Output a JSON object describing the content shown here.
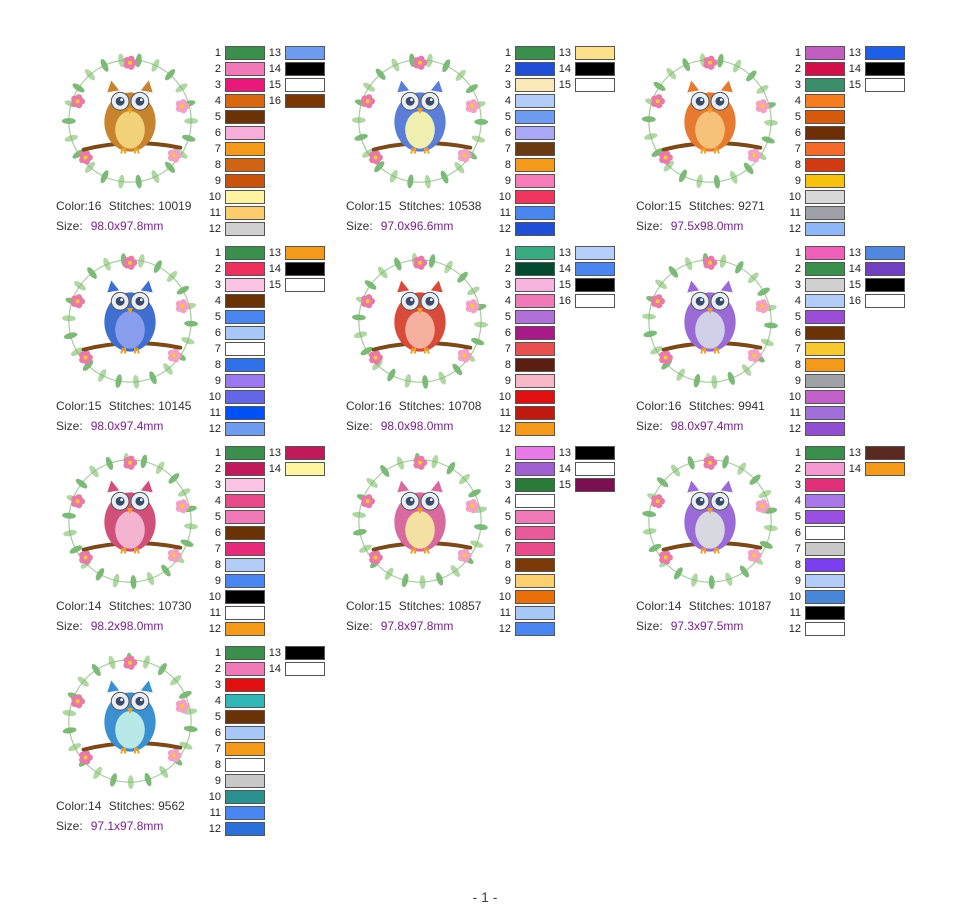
{
  "labels": {
    "color": "Color:",
    "stitches": "Stitches:",
    "size": "Size:"
  },
  "designs": [
    {
      "color_count": "16",
      "stitches": "10019",
      "size": "98.0x97.8mm",
      "owl_color": "#c8832e",
      "owl_belly": "#f1d27a",
      "threads": [
        "#3a8f4d",
        "#f07ab8",
        "#e8197a",
        "#d8680f",
        "#6b3205",
        "#f7aed8",
        "#f49a1a",
        "#ce6414",
        "#c8540c",
        "#fff2a0",
        "#fccd6e",
        "#d0d0d0",
        "#6e9cf0",
        "#000000",
        "#ffffff",
        "#7a3500"
      ]
    },
    {
      "color_count": "15",
      "stitches": "10538",
      "size": "97.0x96.6mm",
      "owl_color": "#5b7fd8",
      "owl_belly": "#f0efb2",
      "threads": [
        "#3a8f4d",
        "#1f4fd4",
        "#fbe8b8",
        "#b4cdf8",
        "#6e9cf0",
        "#a8a8f4",
        "#6a3a10",
        "#f49a1a",
        "#f77cba",
        "#f0355f",
        "#4a86f0",
        "#1f4fd4",
        "#fde08a",
        "#000000",
        "#ffffff"
      ]
    },
    {
      "color_count": "15",
      "stitches": "9271",
      "size": "97.5x98.0mm",
      "owl_color": "#e67a30",
      "owl_belly": "#f6c27a",
      "threads": [
        "#c05fc0",
        "#d10f4a",
        "#3a8f6a",
        "#f57d20",
        "#d85a0c",
        "#6e2e05",
        "#f46a2a",
        "#d23a12",
        "#f7c110",
        "#d8d8d8",
        "#a0a0a8",
        "#8fb7f8",
        "#1f5fe8",
        "#000000",
        "#ffffff"
      ]
    },
    {
      "color_count": "15",
      "stitches": "10145",
      "size": "98.0x97.4mm",
      "owl_color": "#3f6fd0",
      "owl_belly": "#8a9ef0",
      "threads": [
        "#3a8f4d",
        "#f0305c",
        "#fbc4e4",
        "#6b3205",
        "#4a86f0",
        "#a8c8f8",
        "#ffffff",
        "#3070e8",
        "#9a78f0",
        "#6466e8",
        "#0050f8",
        "#6e9cf0",
        "#f49a1a",
        "#000000",
        "#ffffff"
      ]
    },
    {
      "color_count": "16",
      "stitches": "10708",
      "size": "98.0x98.0mm",
      "owl_color": "#d84a3a",
      "owl_belly": "#f6b0a0",
      "threads": [
        "#3aaa80",
        "#044a30",
        "#f7b4de",
        "#f07ab8",
        "#b070d8",
        "#a81a88",
        "#e85050",
        "#5a1f10",
        "#f8b8c8",
        "#e01010",
        "#c01a10",
        "#f49a1a",
        "#b4d0fa",
        "#4a86f0",
        "#000000",
        "#ffffff"
      ]
    },
    {
      "color_count": "16",
      "stitches": "9941",
      "size": "98.0x97.4mm",
      "owl_color": "#9b6ad6",
      "owl_belly": "#d0d0e8",
      "threads": [
        "#f05fb8",
        "#3a8f4d",
        "#d0d0d0",
        "#b4cdf8",
        "#9a4ed8",
        "#6b3205",
        "#f7c830",
        "#f49a1a",
        "#a0a0a8",
        "#c060c8",
        "#a070d8",
        "#8f4fd0",
        "#5088e0",
        "#7040c0",
        "#000000",
        "#ffffff"
      ]
    },
    {
      "color_count": "14",
      "stitches": "10730",
      "size": "98.2x98.0mm",
      "owl_color": "#d0507a",
      "owl_belly": "#f4b4d0",
      "threads": [
        "#3a8f4d",
        "#c01a5a",
        "#fbc4e4",
        "#e84a8a",
        "#f07ab8",
        "#6b3205",
        "#e82a7a",
        "#b4cdf8",
        "#4a86f0",
        "#000000",
        "#ffffff",
        "#f49a1a",
        "#c01a5a",
        "#fff4a0"
      ]
    },
    {
      "color_count": "15",
      "stitches": "10857",
      "size": "97.8x97.8mm",
      "owl_color": "#d86aa0",
      "owl_belly": "#f4e0a0",
      "threads": [
        "#e87ae8",
        "#a060d0",
        "#2a7a3a",
        "#ffffff",
        "#f07ab8",
        "#e85a9a",
        "#e84a8a",
        "#7a3a08",
        "#fcd070",
        "#e8700a",
        "#a8c8f8",
        "#4a86f0",
        "#000000",
        "#ffffff",
        "#7a1050"
      ]
    },
    {
      "color_count": "14",
      "stitches": "10187",
      "size": "97.3x97.5mm",
      "owl_color": "#9a6ad8",
      "owl_belly": "#d8d8e0",
      "threads": [
        "#3a8f4d",
        "#f49ad0",
        "#e0307a",
        "#a878e8",
        "#9a50e0",
        "#ffffff",
        "#c8c8c8",
        "#7a40f0",
        "#b4cdf8",
        "#4a86d8",
        "#000000",
        "#ffffff",
        "#5a2a20",
        "#f49a1a"
      ]
    },
    {
      "color_count": "14",
      "stitches": "9562",
      "size": "97.1x97.8mm",
      "owl_color": "#3a90d0",
      "owl_belly": "#b8e8e8",
      "threads": [
        "#3a8f4d",
        "#f07ab8",
        "#e01010",
        "#30b8b8",
        "#6b3205",
        "#a8c8f8",
        "#f49a1a",
        "#ffffff",
        "#c8c8c8",
        "#2a9090",
        "#4a86f0",
        "#2a70d8",
        "#000000",
        "#ffffff"
      ]
    }
  ],
  "footer": {
    "page": "- 1 -"
  }
}
